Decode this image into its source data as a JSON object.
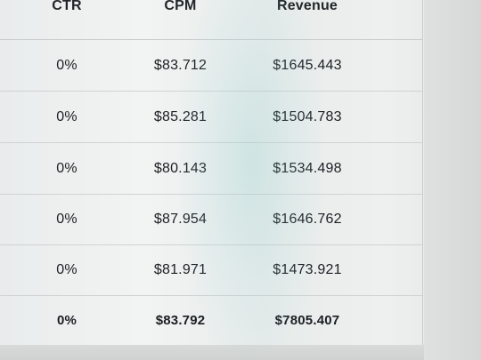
{
  "table": {
    "headers": {
      "ctr": "CTR",
      "cpm": "CPM",
      "revenue": "Revenue"
    },
    "rows": [
      {
        "ctr": "0%",
        "cpm": "$83.712",
        "revenue": "$1645.443"
      },
      {
        "ctr": "0%",
        "cpm": "$85.281",
        "revenue": "$1504.783"
      },
      {
        "ctr": "0%",
        "cpm": "$80.143",
        "revenue": "$1534.498"
      },
      {
        "ctr": "0%",
        "cpm": "$87.954",
        "revenue": "$1646.762"
      },
      {
        "ctr": "0%",
        "cpm": "$81.971",
        "revenue": "$1473.921"
      }
    ],
    "total": {
      "ctr": "0%",
      "cpm": "$83.792",
      "revenue": "$7805.407"
    }
  }
}
